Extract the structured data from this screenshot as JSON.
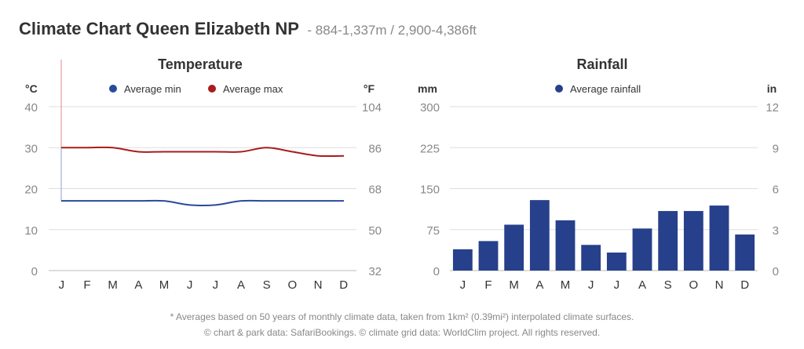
{
  "header": {
    "title": "Climate Chart Queen Elizabeth NP",
    "subtitle": "- 884-1,337m / 2,900-4,386ft"
  },
  "footer": {
    "note": "* Averages based on 50 years of monthly climate data, taken from 1km² (0.39mi²) interpolated climate surfaces.",
    "credits": "© chart & park data: SafariBookings. © climate grid data: WorldClim project. All rights reserved."
  },
  "colors": {
    "max": "#a81c1c",
    "min": "#2a4a9a",
    "rain": "#27408b",
    "grid": "#dddddd",
    "axis": "#888888"
  },
  "chart_data": [
    {
      "type": "line",
      "title": "Temperature",
      "categories": [
        "J",
        "F",
        "M",
        "A",
        "M",
        "J",
        "J",
        "A",
        "S",
        "O",
        "N",
        "D"
      ],
      "series": [
        {
          "name": "Average min",
          "values": [
            17,
            17,
            17,
            17,
            17,
            16,
            16,
            17,
            17,
            17,
            17,
            17
          ]
        },
        {
          "name": "Average max",
          "values": [
            30,
            30,
            30,
            29,
            29,
            29,
            29,
            29,
            30,
            29,
            28,
            28
          ]
        }
      ],
      "ylabel_left": "°C",
      "ylabel_right": "°F",
      "ylim": [
        0,
        40
      ],
      "yticks_left": [
        "0",
        "10",
        "20",
        "30",
        "40"
      ],
      "yticks_right": [
        "32",
        "50",
        "68",
        "86",
        "104"
      ],
      "legend": "top-center"
    },
    {
      "type": "bar",
      "title": "Rainfall",
      "categories": [
        "J",
        "F",
        "M",
        "A",
        "M",
        "J",
        "J",
        "A",
        "S",
        "O",
        "N",
        "D"
      ],
      "series": [
        {
          "name": "Average rainfall",
          "values": [
            39,
            54,
            84,
            129,
            92,
            47,
            33,
            77,
            109,
            109,
            119,
            66
          ]
        }
      ],
      "ylabel_left": "mm",
      "ylabel_right": "in",
      "ylim": [
        0,
        300
      ],
      "yticks_left": [
        "0",
        "75",
        "150",
        "225",
        "300"
      ],
      "yticks_right": [
        "0",
        "3",
        "6",
        "9",
        "12"
      ],
      "legend": "top-center"
    }
  ]
}
